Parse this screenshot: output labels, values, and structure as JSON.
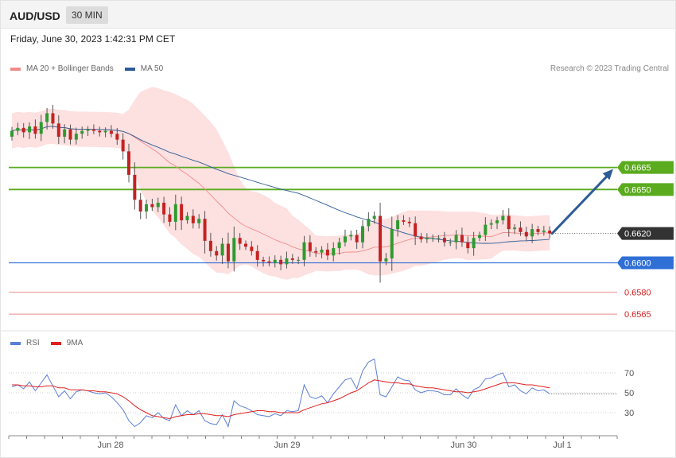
{
  "header": {
    "symbol": "AUD/USD",
    "timeframe": "30 MIN",
    "datetime": "Friday, June 30, 2023 1:42:31 PM CET"
  },
  "price_legend": [
    {
      "label": "MA 20 + Bollinger Bands",
      "color": "#f08c8c"
    },
    {
      "label": "MA 50",
      "color": "#2e5b96"
    }
  ],
  "rsi_legend": [
    {
      "label": "RSI",
      "color": "#5b7fd6"
    },
    {
      "label": "9MA",
      "color": "#e02020"
    }
  ],
  "credit": "Research © 2023 Trading Central",
  "colors": {
    "resistance": "#5aab1e",
    "pivot": "#2f6fd6",
    "support": "#f3a0a0",
    "support_text": "#d31f1f",
    "current": "#333333",
    "candle_up": "#2f9a2f",
    "candle_down": "#c42222",
    "band_fill": "#fde0e0",
    "arrow": "#2e5b96"
  },
  "chart_data": [
    {
      "type": "candlestick",
      "title": "",
      "x_tick_labels": [
        "Jun 28",
        "Jun 29",
        "Jun 30",
        "Jul 1"
      ],
      "ylim": [
        0.6558,
        0.6725
      ],
      "current_price": {
        "value": 0.662,
        "label": "0.6620"
      },
      "key_levels": [
        {
          "value": 0.6665,
          "label": "0.6665",
          "kind": "resistance"
        },
        {
          "value": 0.665,
          "label": "0.6650",
          "kind": "resistance"
        },
        {
          "value": 0.66,
          "label": "0.6600",
          "kind": "pivot"
        },
        {
          "value": 0.658,
          "label": "0.6580",
          "kind": "support"
        },
        {
          "value": 0.6565,
          "label": "0.6565",
          "kind": "support"
        }
      ],
      "projection": {
        "from": 0.662,
        "to": 0.6665
      },
      "closes": [
        0.669,
        0.6692,
        0.6689,
        0.6693,
        0.6688,
        0.6696,
        0.6702,
        0.6695,
        0.6686,
        0.6691,
        0.6684,
        0.6688,
        0.669,
        0.6691,
        0.669,
        0.6689,
        0.669,
        0.6688,
        0.6684,
        0.6676,
        0.666,
        0.6643,
        0.6635,
        0.664,
        0.6638,
        0.6641,
        0.6633,
        0.6628,
        0.664,
        0.6629,
        0.6632,
        0.6627,
        0.663,
        0.6615,
        0.6608,
        0.6605,
        0.6613,
        0.6601,
        0.6617,
        0.6613,
        0.6611,
        0.6608,
        0.6602,
        0.6601,
        0.66,
        0.6602,
        0.6599,
        0.6603,
        0.6602,
        0.6602,
        0.6614,
        0.6608,
        0.6607,
        0.6609,
        0.6605,
        0.661,
        0.6614,
        0.6618,
        0.6619,
        0.6614,
        0.6625,
        0.663,
        0.6632,
        0.6601,
        0.6603,
        0.6623,
        0.6629,
        0.6628,
        0.6627,
        0.6618,
        0.6616,
        0.6617,
        0.6617,
        0.6617,
        0.6614,
        0.6614,
        0.6619,
        0.6614,
        0.661,
        0.6617,
        0.6619,
        0.6626,
        0.6627,
        0.6629,
        0.6632,
        0.6623,
        0.6624,
        0.6621,
        0.6618,
        0.6623,
        0.6621,
        0.6622,
        0.662
      ]
    },
    {
      "type": "line",
      "title": "",
      "ylim": [
        10,
        90
      ],
      "y_ticks": [
        30,
        50,
        70
      ],
      "series": [
        {
          "name": "RSI",
          "values": [
            56,
            58,
            54,
            61,
            52,
            60,
            68,
            57,
            46,
            52,
            44,
            51,
            53,
            52,
            50,
            49,
            50,
            46,
            40,
            33,
            22,
            16,
            20,
            27,
            25,
            30,
            24,
            22,
            38,
            27,
            32,
            28,
            32,
            22,
            19,
            18,
            28,
            16,
            42,
            37,
            35,
            32,
            28,
            27,
            26,
            29,
            27,
            32,
            31,
            32,
            58,
            46,
            44,
            47,
            40,
            49,
            56,
            63,
            65,
            54,
            72,
            81,
            84,
            48,
            46,
            56,
            66,
            63,
            62,
            53,
            50,
            52,
            52,
            51,
            48,
            48,
            54,
            48,
            44,
            53,
            56,
            64,
            65,
            68,
            70,
            56,
            58,
            52,
            49,
            55,
            52,
            53,
            49
          ]
        },
        {
          "name": "9MA",
          "values": [
            58,
            58,
            57,
            57,
            56,
            56,
            57,
            57,
            55,
            55,
            53,
            53,
            53,
            52,
            52,
            51,
            51,
            50,
            49,
            46,
            42,
            37,
            33,
            30,
            27,
            26,
            25,
            24,
            26,
            27,
            28,
            28,
            29,
            29,
            28,
            27,
            27,
            26,
            28,
            29,
            30,
            31,
            32,
            32,
            31,
            31,
            30,
            30,
            30,
            30,
            33,
            35,
            37,
            39,
            40,
            42,
            44,
            47,
            50,
            52,
            56,
            60,
            63,
            62,
            61,
            60,
            60,
            59,
            59,
            57,
            56,
            55,
            55,
            54,
            53,
            52,
            51,
            51,
            50,
            51,
            52,
            54,
            56,
            58,
            60,
            60,
            60,
            59,
            58,
            58,
            57,
            56,
            55
          ]
        }
      ]
    }
  ]
}
